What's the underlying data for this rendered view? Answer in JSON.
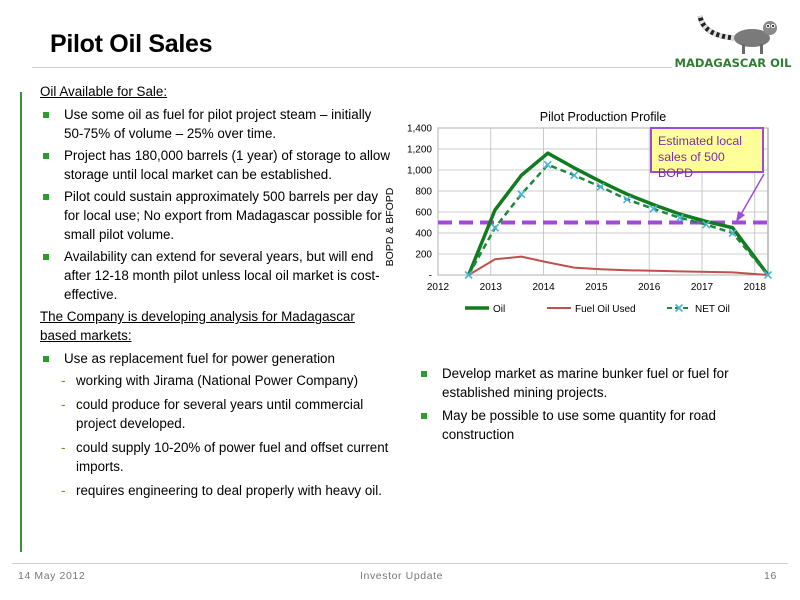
{
  "slide": {
    "title": "Pilot Oil Sales",
    "logo_text": "MADAGASCAR OIL"
  },
  "left": {
    "heading1": "Oil Available for Sale:",
    "bullets1": [
      "Use some oil as fuel for pilot project steam – initially 50-75% of volume – 25% over time.",
      "Project has 180,000 barrels (1 year) of storage to allow storage until local market can be established.",
      "Pilot could sustain approximately 500 barrels per day for local use; No export from Madagascar possible for small pilot volume.",
      "Availability can extend for several years, but will end after 12-18 month pilot unless local oil market is cost-effective."
    ],
    "heading2": "The Company is developing analysis for Madagascar based markets:",
    "bullet2": "Use as replacement fuel for power generation",
    "sub_bullets": [
      "working with Jirama (National Power Company)",
      "could produce for several years until commercial project developed.",
      "could supply 10-20% of power fuel and offset current imports.",
      "requires engineering to deal properly with heavy oil."
    ]
  },
  "right": {
    "bullets": [
      "Develop market as marine bunker fuel or fuel for established mining projects.",
      "May be possible to use some quantity for road construction"
    ]
  },
  "callout": {
    "line1": "Estimated local",
    "line2": "sales of 500 BOPD"
  },
  "footer": {
    "date": "14 May 2012",
    "center": "Investor Update",
    "page": "16"
  },
  "colors": {
    "oil": "#127a1f",
    "fuel": "#c0504d",
    "net": "#1a8a3a",
    "marker": "#4bb5d6",
    "target": "#a04bd8",
    "bullet": "#2e9b2e"
  },
  "chart_data": {
    "type": "line",
    "title": "Pilot Production Profile",
    "xlabel": "",
    "ylabel": "BOPD & BFOPD",
    "x_ticks": [
      "2012",
      "2013",
      "2014",
      "2015",
      "2016",
      "2017",
      "2018"
    ],
    "y_ticks": [
      "-",
      "200",
      "400",
      "600",
      "800",
      "1,000",
      "1,200",
      "1,400"
    ],
    "xlim": [
      2012,
      2018.25
    ],
    "ylim": [
      0,
      1400
    ],
    "grid": true,
    "legend": "bottom",
    "x": [
      2012.58,
      2013.08,
      2013.58,
      2014.08,
      2014.58,
      2015.08,
      2015.58,
      2016.08,
      2016.58,
      2017.08,
      2017.58,
      2018.25
    ],
    "series": [
      {
        "name": "Oil",
        "style": "solid",
        "values": [
          0,
          620,
          950,
          1160,
          1020,
          890,
          770,
          670,
          580,
          510,
          450,
          0
        ]
      },
      {
        "name": "Fuel Oil Used",
        "style": "solid",
        "values": [
          0,
          150,
          175,
          120,
          70,
          55,
          45,
          40,
          35,
          30,
          25,
          0
        ]
      },
      {
        "name": "NET Oil",
        "style": "dashed-markers",
        "values": [
          0,
          450,
          770,
          1050,
          950,
          840,
          720,
          630,
          545,
          480,
          400,
          0
        ]
      }
    ],
    "reference_line": {
      "value": 500,
      "style": "dashed"
    }
  }
}
